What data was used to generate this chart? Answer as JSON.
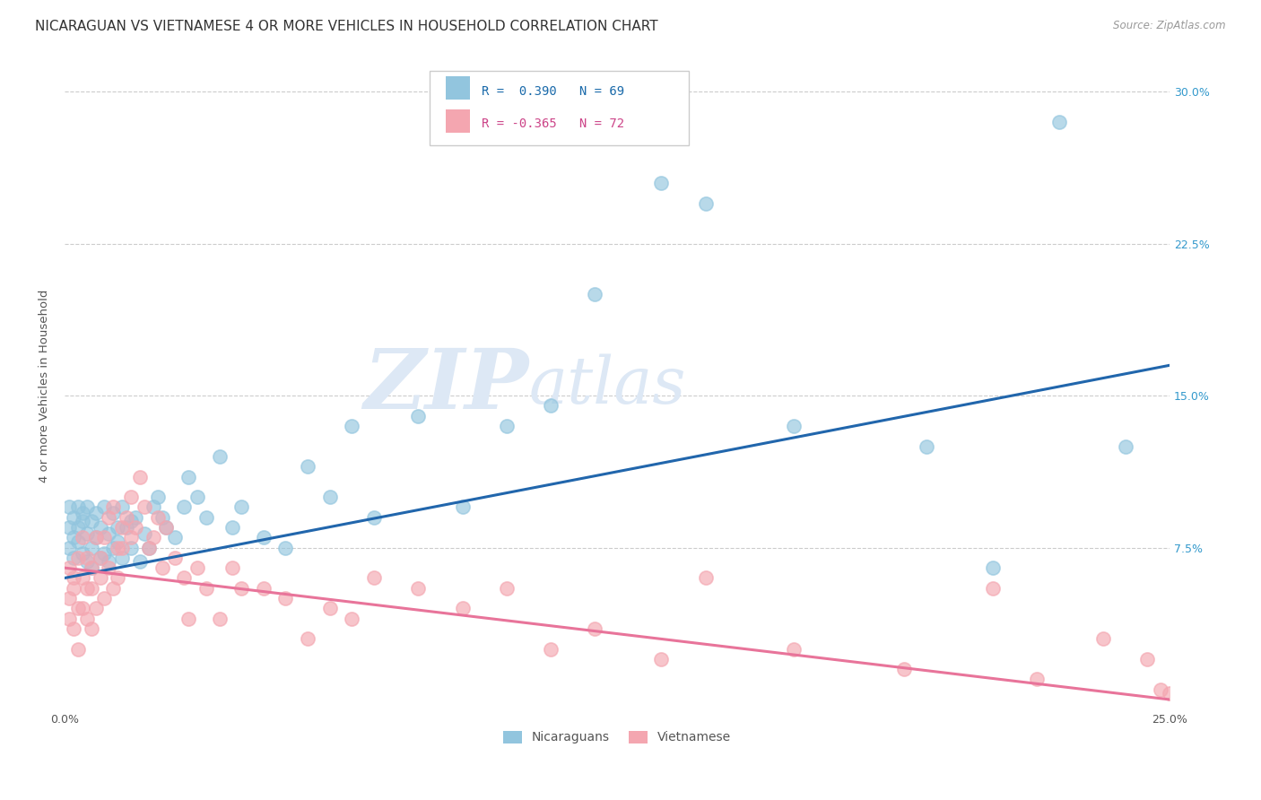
{
  "title": "NICARAGUAN VS VIETNAMESE 4 OR MORE VEHICLES IN HOUSEHOLD CORRELATION CHART",
  "source": "Source: ZipAtlas.com",
  "ylabel": "4 or more Vehicles in Household",
  "xlim": [
    0.0,
    0.25
  ],
  "ylim": [
    -0.005,
    0.315
  ],
  "xticks": [
    0.0,
    0.05,
    0.1,
    0.15,
    0.2,
    0.25
  ],
  "xtick_labels": [
    "0.0%",
    "",
    "",
    "",
    "",
    "25.0%"
  ],
  "yticks_right": [
    0.075,
    0.15,
    0.225,
    0.3
  ],
  "ytick_labels_right": [
    "7.5%",
    "15.0%",
    "22.5%",
    "30.0%"
  ],
  "legend_nicaraguan_label": "Nicaraguans",
  "legend_vietnamese_label": "Vietnamese",
  "R_nicaraguan": 0.39,
  "N_nicaraguan": 69,
  "R_vietnamese": -0.365,
  "N_vietnamese": 72,
  "nicaraguan_color": "#92c5de",
  "vietnamese_color": "#f4a6b0",
  "nicaraguan_line_color": "#2166ac",
  "vietnamese_line_color": "#e8749a",
  "background_color": "#ffffff",
  "watermark_zip": "ZIP",
  "watermark_atlas": "atlas",
  "watermark_color": "#dde8f5",
  "grid_color": "#cccccc",
  "title_fontsize": 11,
  "axis_label_fontsize": 9.5,
  "tick_fontsize": 9,
  "nicaraguan_line_y0": 0.06,
  "nicaraguan_line_y1": 0.165,
  "vietnamese_line_y0": 0.065,
  "vietnamese_line_y1": 0.0,
  "nicaraguan_scatter_x": [
    0.001,
    0.001,
    0.001,
    0.002,
    0.002,
    0.002,
    0.003,
    0.003,
    0.003,
    0.004,
    0.004,
    0.004,
    0.005,
    0.005,
    0.005,
    0.006,
    0.006,
    0.006,
    0.007,
    0.007,
    0.008,
    0.008,
    0.009,
    0.009,
    0.01,
    0.01,
    0.011,
    0.011,
    0.012,
    0.012,
    0.013,
    0.013,
    0.014,
    0.015,
    0.015,
    0.016,
    0.017,
    0.018,
    0.019,
    0.02,
    0.021,
    0.022,
    0.023,
    0.025,
    0.027,
    0.028,
    0.03,
    0.032,
    0.035,
    0.038,
    0.04,
    0.045,
    0.05,
    0.055,
    0.06,
    0.065,
    0.07,
    0.08,
    0.09,
    0.1,
    0.11,
    0.12,
    0.135,
    0.145,
    0.165,
    0.195,
    0.21,
    0.225,
    0.24
  ],
  "nicaraguan_scatter_y": [
    0.085,
    0.095,
    0.075,
    0.09,
    0.08,
    0.07,
    0.085,
    0.095,
    0.078,
    0.092,
    0.072,
    0.088,
    0.082,
    0.068,
    0.095,
    0.075,
    0.088,
    0.065,
    0.08,
    0.092,
    0.085,
    0.07,
    0.095,
    0.072,
    0.082,
    0.068,
    0.075,
    0.092,
    0.085,
    0.078,
    0.095,
    0.07,
    0.085,
    0.088,
    0.075,
    0.09,
    0.068,
    0.082,
    0.075,
    0.095,
    0.1,
    0.09,
    0.085,
    0.08,
    0.095,
    0.11,
    0.1,
    0.09,
    0.12,
    0.085,
    0.095,
    0.08,
    0.075,
    0.115,
    0.1,
    0.135,
    0.09,
    0.14,
    0.095,
    0.135,
    0.145,
    0.2,
    0.255,
    0.245,
    0.135,
    0.125,
    0.065,
    0.285,
    0.125
  ],
  "vietnamese_scatter_x": [
    0.001,
    0.001,
    0.001,
    0.002,
    0.002,
    0.002,
    0.003,
    0.003,
    0.003,
    0.004,
    0.004,
    0.004,
    0.005,
    0.005,
    0.005,
    0.006,
    0.006,
    0.006,
    0.007,
    0.007,
    0.008,
    0.008,
    0.009,
    0.009,
    0.01,
    0.01,
    0.011,
    0.011,
    0.012,
    0.012,
    0.013,
    0.013,
    0.014,
    0.015,
    0.015,
    0.016,
    0.017,
    0.018,
    0.019,
    0.02,
    0.021,
    0.022,
    0.023,
    0.025,
    0.027,
    0.028,
    0.03,
    0.032,
    0.035,
    0.038,
    0.04,
    0.045,
    0.05,
    0.055,
    0.06,
    0.065,
    0.07,
    0.08,
    0.09,
    0.1,
    0.11,
    0.12,
    0.135,
    0.145,
    0.165,
    0.19,
    0.21,
    0.22,
    0.235,
    0.245,
    0.248,
    0.25
  ],
  "vietnamese_scatter_y": [
    0.065,
    0.05,
    0.04,
    0.06,
    0.035,
    0.055,
    0.045,
    0.07,
    0.025,
    0.06,
    0.045,
    0.08,
    0.055,
    0.04,
    0.07,
    0.035,
    0.065,
    0.055,
    0.08,
    0.045,
    0.06,
    0.07,
    0.05,
    0.08,
    0.065,
    0.09,
    0.055,
    0.095,
    0.075,
    0.06,
    0.085,
    0.075,
    0.09,
    0.08,
    0.1,
    0.085,
    0.11,
    0.095,
    0.075,
    0.08,
    0.09,
    0.065,
    0.085,
    0.07,
    0.06,
    0.04,
    0.065,
    0.055,
    0.04,
    0.065,
    0.055,
    0.055,
    0.05,
    0.03,
    0.045,
    0.04,
    0.06,
    0.055,
    0.045,
    0.055,
    0.025,
    0.035,
    0.02,
    0.06,
    0.025,
    0.015,
    0.055,
    0.01,
    0.03,
    0.02,
    0.005,
    0.003
  ]
}
